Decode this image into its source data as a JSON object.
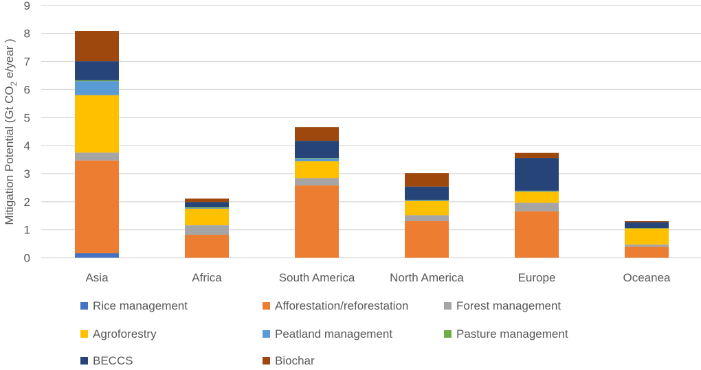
{
  "chart_data": {
    "type": "bar",
    "stacked": true,
    "title": "",
    "xlabel": "",
    "ylabel": "Mitigation Potential  (Gt CO",
    "ylabel_sub": "2",
    "ylabel_tail": " e/year )",
    "ylim": [
      0,
      9
    ],
    "yticks": [
      "0",
      "1",
      "2",
      "3",
      "4",
      "5",
      "6",
      "7",
      "8",
      "9"
    ],
    "grid": true,
    "legend_position": "bottom",
    "categories": [
      "Asia",
      "Africa",
      "South America",
      "North America",
      "Europe",
      "Oceanea"
    ],
    "series": [
      {
        "name": "Rice management",
        "color": "#4472C4",
        "values": [
          0.16,
          0,
          0,
          0,
          0,
          0
        ]
      },
      {
        "name": "Afforestation/reforestation",
        "color": "#ED7D31",
        "values": [
          3.31,
          0.82,
          2.58,
          1.31,
          1.66,
          0.39
        ]
      },
      {
        "name": "Forest management",
        "color": "#A5A5A5",
        "values": [
          0.28,
          0.34,
          0.26,
          0.21,
          0.3,
          0.08
        ]
      },
      {
        "name": "Agroforestry",
        "color": "#FFC000",
        "values": [
          2.05,
          0.59,
          0.6,
          0.5,
          0.39,
          0.57
        ]
      },
      {
        "name": "Peatland management",
        "color": "#5B9BD5",
        "values": [
          0.5,
          0.03,
          0.1,
          0.02,
          0.02,
          0
        ]
      },
      {
        "name": "Pasture management",
        "color": "#70AD47",
        "values": [
          0.03,
          0.02,
          0.02,
          0.02,
          0.02,
          0.02
        ]
      },
      {
        "name": "BECCS",
        "color": "#264478",
        "values": [
          0.68,
          0.19,
          0.61,
          0.48,
          1.17,
          0.21
        ]
      },
      {
        "name": "Biochar",
        "color": "#9E480E",
        "values": [
          1.08,
          0.12,
          0.49,
          0.48,
          0.18,
          0.04
        ]
      }
    ]
  }
}
